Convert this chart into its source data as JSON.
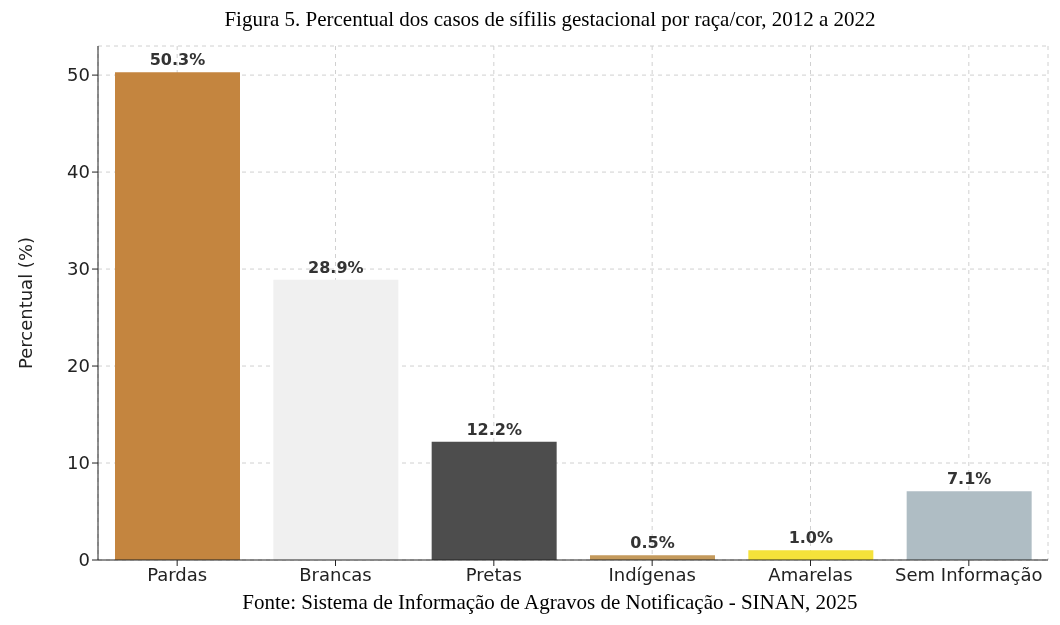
{
  "chart_data": {
    "type": "bar",
    "title": "Figura 5. Percentual dos casos de sífilis gestacional por raça/cor, 2012 a 2022",
    "ylabel": "Percentual (%)",
    "categories": [
      "Pardas",
      "Brancas",
      "Pretas",
      "Indígenas",
      "Amarelas",
      "Sem Informação"
    ],
    "values": [
      50.3,
      28.9,
      12.2,
      0.5,
      1.0,
      7.1
    ],
    "colors": [
      "#c4853f",
      "#f0f0f0",
      "#4d4d4d",
      "#c49a5c",
      "#f5e23a",
      "#afbdc4"
    ],
    "value_labels": [
      "50.3%",
      "28.9%",
      "12.2%",
      "0.5%",
      "1.0%",
      "7.1%"
    ],
    "ylim": [
      0,
      53
    ],
    "yticks": [
      0,
      10,
      20,
      30,
      40,
      50
    ],
    "grid": true,
    "annotations": [
      "Fonte: Sistema de Informação de Agravos de Notificação - SINAN, 2025"
    ]
  }
}
